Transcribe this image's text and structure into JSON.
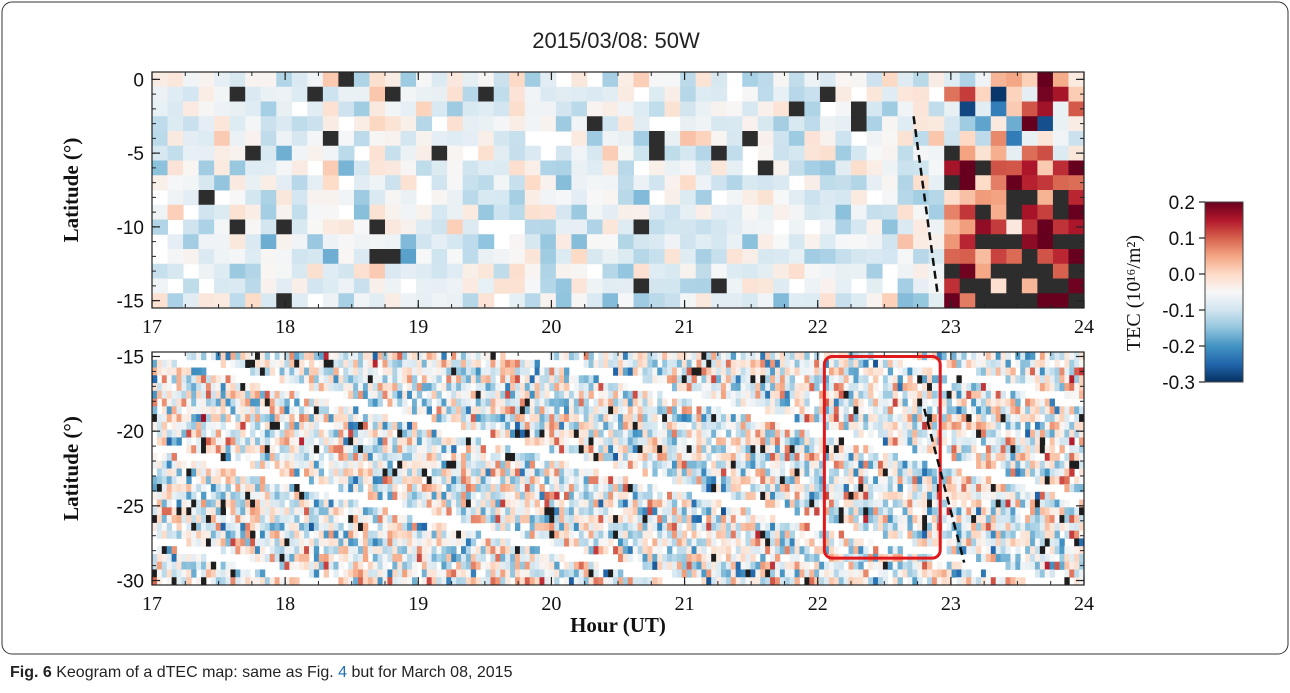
{
  "figure": {
    "title": "2015/03/08: 50W",
    "caption_label": "Fig. 6",
    "caption_text_a": "Keogram of a dTEC map: same as Fig. ",
    "caption_ref": "4",
    "caption_text_b": " but for March 08, 2015"
  },
  "chart_data": [
    {
      "type": "heatmap",
      "panel": "top",
      "title": "2015/03/08: 50W",
      "xlabel": "",
      "ylabel": "Latitude (°)",
      "xlim": [
        17,
        24
      ],
      "ylim": [
        -15.5,
        0.5
      ],
      "xticks": [
        17,
        18,
        19,
        20,
        21,
        22,
        23,
        24
      ],
      "yticks": [
        0,
        -5,
        -10,
        -15
      ],
      "dashed_line": {
        "x": [
          22.72,
          22.9
        ],
        "y": [
          -2.5,
          -14.5
        ]
      },
      "colormap": "RdBu_r",
      "clim": [
        -0.3,
        0.2
      ]
    },
    {
      "type": "heatmap",
      "panel": "bottom",
      "xlabel": "Hour (UT)",
      "ylabel": "Latitude (°)",
      "xlim": [
        17,
        24
      ],
      "ylim": [
        -30.3,
        -14.7
      ],
      "xticks": [
        17,
        18,
        19,
        20,
        21,
        22,
        23,
        24
      ],
      "yticks": [
        -15,
        -20,
        -25,
        -30
      ],
      "highlight_box": {
        "x": [
          22.05,
          22.92
        ],
        "y": [
          -15.0,
          -28.5
        ],
        "color": "#e0191c"
      },
      "dashed_line": {
        "x": [
          22.8,
          23.1
        ],
        "y": [
          -18.5,
          -28.8
        ]
      },
      "colormap": "RdBu_r",
      "clim": [
        -0.3,
        0.2
      ]
    }
  ],
  "colorbar": {
    "label": "TEC (10¹⁶/m²)",
    "min": -0.3,
    "max": 0.2,
    "ticks": [
      "0.2",
      "0.1",
      "0.0",
      "-0.1",
      "-0.2",
      "-0.3"
    ],
    "colors": [
      "#053061",
      "#2166ac",
      "#4393c3",
      "#92c5de",
      "#d1e5f0",
      "#f7f7f7",
      "#fddbc7",
      "#f4a582",
      "#d6604d",
      "#b2182b",
      "#67001f"
    ]
  }
}
